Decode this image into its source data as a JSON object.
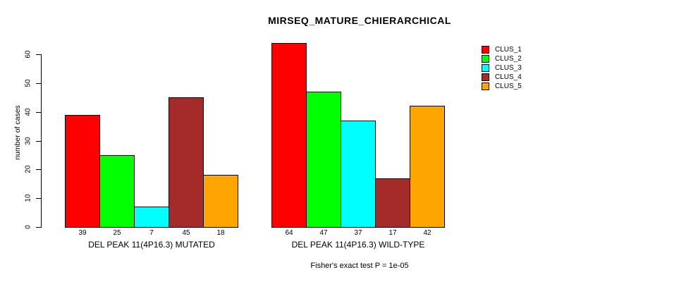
{
  "chart_data": {
    "type": "bar",
    "title": "MIRSEQ_MATURE_CHIERARCHICAL",
    "ylabel": "number of cases",
    "xlabel": "",
    "caption": "Fisher's exact test P = 1e-05",
    "categories": [
      "DEL PEAK 11(4P16.3) MUTATED",
      "DEL PEAK 11(4P16.3) WILD-TYPE"
    ],
    "series": [
      {
        "name": "CLUS_1",
        "color": "#FF0000",
        "values": [
          39,
          64
        ]
      },
      {
        "name": "CLUS_2",
        "color": "#00FF00",
        "values": [
          25,
          47
        ]
      },
      {
        "name": "CLUS_3",
        "color": "#00FFFF",
        "values": [
          7,
          37
        ]
      },
      {
        "name": "CLUS_4",
        "color": "#A52A2A",
        "values": [
          45,
          17
        ]
      },
      {
        "name": "CLUS_5",
        "color": "#FFA500",
        "values": [
          18,
          42
        ]
      }
    ],
    "yticks": [
      0,
      10,
      20,
      30,
      40,
      50,
      60
    ],
    "ylim": [
      0,
      60
    ],
    "bar_value_labels": true,
    "grid": false,
    "legend_position": "top-right",
    "axis_color": "#000000",
    "background_color": "#FFFFFF"
  }
}
